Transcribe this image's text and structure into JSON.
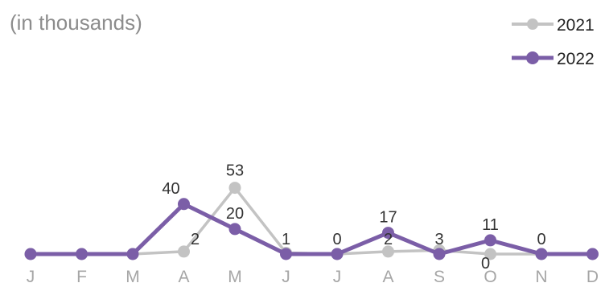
{
  "chart_data": {
    "type": "line",
    "unit_note": "(in thousands)",
    "categories": [
      "J",
      "F",
      "M",
      "A",
      "M",
      "J",
      "J",
      "A",
      "S",
      "O",
      "N",
      "D"
    ],
    "ylim": [
      0,
      200
    ],
    "grid": false,
    "legend_position": "top-right",
    "series": [
      {
        "name": "2021",
        "color": "#c3c3c3",
        "values": [
          0,
          0,
          0,
          2,
          53,
          1,
          0,
          2,
          3,
          0,
          0,
          0
        ],
        "labels": [
          "",
          "",
          "",
          "2",
          "53",
          "1",
          "0",
          "2",
          "3",
          "0",
          "0",
          ""
        ]
      },
      {
        "name": "2022",
        "color": "#7b5ea7",
        "values": [
          0,
          0,
          0,
          40,
          20,
          0,
          0,
          17,
          0,
          11,
          0,
          0
        ],
        "labels": [
          "",
          "",
          "",
          "40",
          "20",
          "",
          "",
          "17",
          "",
          "11",
          "",
          ""
        ]
      }
    ]
  }
}
